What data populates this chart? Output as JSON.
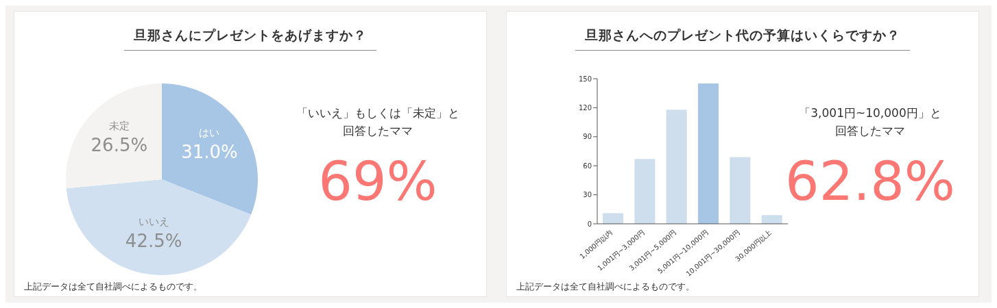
{
  "chart_data": [
    {
      "type": "pie",
      "title": "旦那さんにプレゼントをあげますか？",
      "categories": [
        "はい",
        "いいえ",
        "未定"
      ],
      "values": [
        31.0,
        42.5,
        26.5
      ],
      "colors": [
        "#a7c6e5",
        "#d0e0f0",
        "#f4f3f1"
      ],
      "value_labels": [
        "31.0%",
        "42.5%",
        "26.5%"
      ],
      "legend": false,
      "annotations": [
        "「いいえ」もしくは「未定」と",
        "回答したママ",
        "69%",
        "上記データは全て自社調べによるものです。"
      ]
    },
    {
      "type": "bar",
      "title": "旦那さんへのプレゼント代の予算はいくらですか？",
      "categories": [
        "1,000円以内",
        "1,001円~3,000円",
        "3,001円~5,000円",
        "5,001円~10,000円",
        "10,001円~30,000円",
        "30,000円以上"
      ],
      "values": [
        11,
        67,
        118,
        145,
        69,
        9
      ],
      "colors": [
        "#cfdeed",
        "#cfdeed",
        "#cfdeed",
        "#a7c6e5",
        "#cfdeed",
        "#cfdeed"
      ],
      "ylim": [
        0,
        150
      ],
      "yticks": [
        0,
        30,
        60,
        90,
        120,
        150
      ],
      "grid": false,
      "legend": false,
      "annotations": [
        "「3,001円~10,000円」と",
        "回答したママ",
        "62.8%",
        "上記データは全て自社調べによるものです。"
      ]
    }
  ]
}
